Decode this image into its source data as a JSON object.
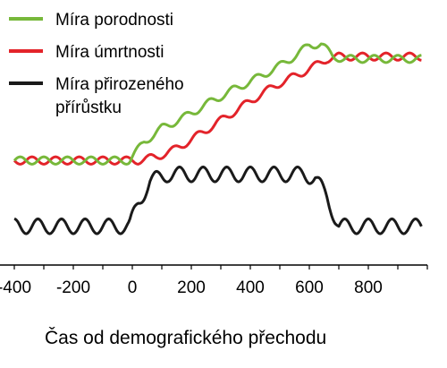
{
  "chart_data": {
    "type": "line",
    "xlabel": "Čas od demografického přechodu",
    "ylabel": "",
    "xlim": [
      -400,
      1000
    ],
    "ylim": [
      -60,
      130
    ],
    "x_ticks": [
      "-400",
      "-200",
      "0",
      "200",
      "400",
      "600",
      "800"
    ],
    "grid": false,
    "legend": "top-left",
    "series": [
      {
        "name": "Míra porodnosti",
        "color": "#77b83a",
        "points": [
          [
            -400,
            22
          ],
          [
            -10,
            22
          ],
          [
            40,
            38
          ],
          [
            100,
            50
          ],
          [
            180,
            60
          ],
          [
            260,
            72
          ],
          [
            340,
            83
          ],
          [
            420,
            93
          ],
          [
            500,
            104
          ],
          [
            560,
            114
          ],
          [
            600,
            122
          ],
          [
            640,
            123
          ],
          [
            680,
            112
          ],
          [
            720,
            110
          ],
          [
            1000,
            110
          ]
        ]
      },
      {
        "name": "Míra úmrtnosti",
        "color": "#e3232a",
        "points": [
          [
            -400,
            22
          ],
          [
            20,
            22
          ],
          [
            80,
            25
          ],
          [
            140,
            31
          ],
          [
            200,
            40
          ],
          [
            260,
            50
          ],
          [
            320,
            60
          ],
          [
            380,
            70
          ],
          [
            440,
            80
          ],
          [
            500,
            89
          ],
          [
            560,
            96
          ],
          [
            620,
            104
          ],
          [
            660,
            110
          ],
          [
            700,
            112
          ],
          [
            1000,
            112
          ]
        ]
      },
      {
        "name": "Míra přirozeného přírůstku",
        "color": "#1a1a1a",
        "points": [
          [
            -400,
            -35
          ],
          [
            -10,
            -35
          ],
          [
            20,
            -15
          ],
          [
            60,
            4
          ],
          [
            120,
            10
          ],
          [
            200,
            10
          ],
          [
            300,
            10
          ],
          [
            400,
            10
          ],
          [
            500,
            10
          ],
          [
            580,
            10
          ],
          [
            620,
            7
          ],
          [
            660,
            -10
          ],
          [
            700,
            -35
          ],
          [
            1000,
            -35
          ]
        ]
      }
    ]
  }
}
